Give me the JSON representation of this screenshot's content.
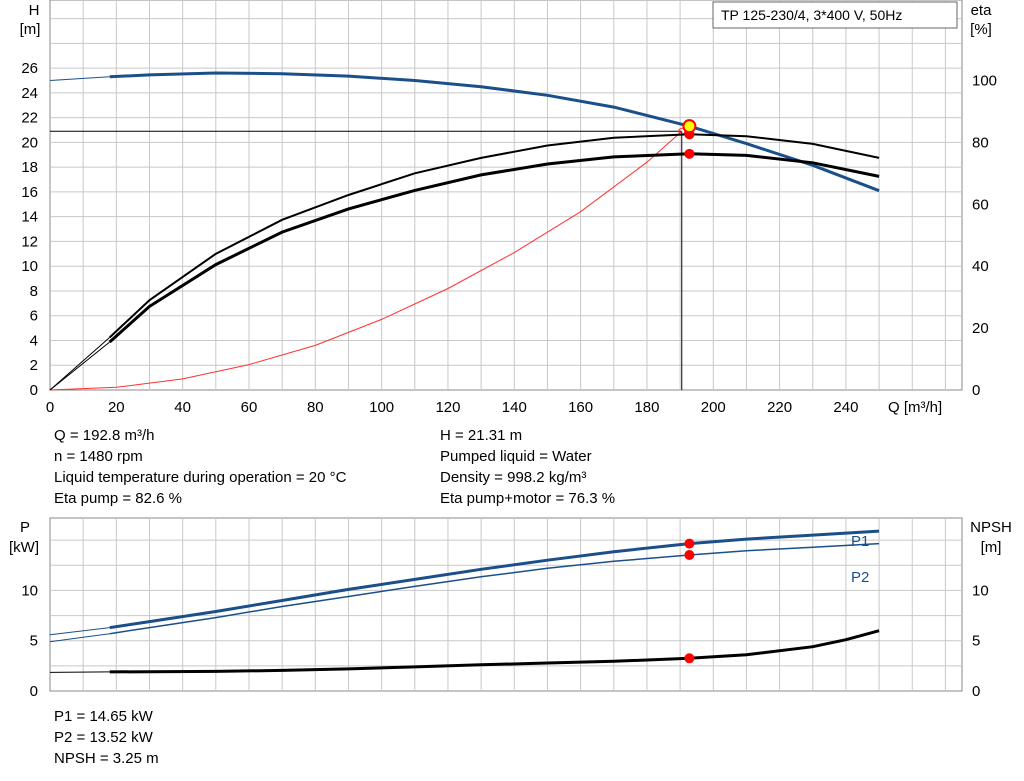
{
  "colors": {
    "curve_blue": "#1b4f8a",
    "curve_black": "#000000",
    "system_curve": "#ff3030",
    "grid": "#c8c8c8",
    "marker_red": "#ff0000",
    "duty_marker_fill": "#ffff00"
  },
  "title_box": "TP 125-230/4, 3*400 V, 50Hz",
  "info_top": {
    "left": [
      "Q = 192.8 m³/h",
      "n = 1480 rpm",
      "Liquid temperature during operation = 20 °C",
      "Eta pump = 82.6 %"
    ],
    "right": [
      "H = 21.31 m",
      "Pumped liquid = Water",
      "Density = 998.2 kg/m³",
      "Eta pump+motor = 76.3 %"
    ]
  },
  "info_bottom": [
    "P1 = 14.65 kW",
    "P2 = 13.52 kW",
    "NPSH = 3.25 m"
  ],
  "chart_data": [
    {
      "type": "line",
      "name": "head-efficiency",
      "x_label": "Q [m³/h]",
      "y_left_label": [
        "H",
        "[m]"
      ],
      "y_right_label": [
        "eta",
        "[%]"
      ],
      "x_ticks": [
        "0",
        "20",
        "40",
        "60",
        "80",
        "100",
        "120",
        "140",
        "160",
        "180",
        "200",
        "220",
        "240"
      ],
      "y_left_ticks": [
        "0",
        "2",
        "4",
        "6",
        "8",
        "10",
        "12",
        "14",
        "16",
        "18",
        "20",
        "22",
        "24",
        "26"
      ],
      "y_right_ticks": [
        "0",
        "20",
        "40",
        "60",
        "80",
        "100"
      ],
      "xlim": [
        0,
        275
      ],
      "ylim_left": [
        0,
        31.5
      ],
      "ylim_right": [
        0,
        126
      ],
      "grid": true,
      "series": [
        {
          "key": "head",
          "axis": "left",
          "x": [
            0,
            18,
            30,
            50,
            70,
            90,
            110,
            130,
            150,
            170,
            192.8,
            210,
            230,
            250
          ],
          "y": [
            25.0,
            25.3,
            25.45,
            25.6,
            25.55,
            25.35,
            25.0,
            24.5,
            23.8,
            22.85,
            21.31,
            19.9,
            18.15,
            16.1
          ]
        },
        {
          "key": "eta_pump",
          "axis": "right",
          "x": [
            0,
            18,
            30,
            50,
            70,
            90,
            110,
            130,
            150,
            170,
            192.8,
            210,
            230,
            250
          ],
          "y": [
            0,
            17,
            29,
            44,
            55,
            63,
            70,
            75,
            79,
            81.5,
            82.6,
            82.0,
            79.5,
            75
          ]
        },
        {
          "key": "eta_pump_motor",
          "axis": "right",
          "x": [
            0,
            18,
            30,
            50,
            70,
            90,
            110,
            130,
            150,
            170,
            192.8,
            210,
            230,
            250
          ],
          "y": [
            0,
            15.5,
            27,
            40.5,
            51,
            58.5,
            64.5,
            69.5,
            73,
            75.3,
            76.3,
            75.8,
            73.4,
            69
          ]
        },
        {
          "key": "system",
          "axis": "left",
          "x": [
            0,
            20,
            40,
            60,
            80,
            100,
            120,
            140,
            160,
            180,
            190.5
          ],
          "y": [
            0,
            0.22,
            0.9,
            2.05,
            3.6,
            5.7,
            8.2,
            11.1,
            14.4,
            18.4,
            20.9
          ]
        }
      ],
      "duty_point": {
        "q": 192.8,
        "h": 21.31,
        "eta_pump": 82.6,
        "eta_pump_motor": 76.3,
        "h_line": 20.9,
        "q_line": 190.5,
        "extra_marker_eta": 84.5
      }
    },
    {
      "type": "line",
      "name": "power-npsh",
      "y_left_label": [
        "P",
        "[kW]"
      ],
      "y_right_label": [
        "NPSH",
        "[m]"
      ],
      "y_left_ticks": [
        "0",
        "5",
        "10"
      ],
      "y_right_ticks": [
        "0",
        "5",
        "10"
      ],
      "xlim": [
        0,
        275
      ],
      "ylim": [
        0,
        17.2
      ],
      "grid": true,
      "series": [
        {
          "key": "P1",
          "name": "P1",
          "x": [
            0,
            18,
            30,
            50,
            70,
            90,
            110,
            130,
            150,
            170,
            192.8,
            210,
            230,
            250
          ],
          "y": [
            5.6,
            6.3,
            6.9,
            7.9,
            9.0,
            10.1,
            11.1,
            12.1,
            13.0,
            13.85,
            14.65,
            15.1,
            15.5,
            15.9
          ]
        },
        {
          "key": "P2",
          "name": "P2",
          "x": [
            0,
            18,
            30,
            50,
            70,
            90,
            110,
            130,
            150,
            170,
            192.8,
            210,
            230,
            250
          ],
          "y": [
            4.9,
            5.7,
            6.3,
            7.3,
            8.4,
            9.4,
            10.4,
            11.35,
            12.2,
            12.9,
            13.52,
            13.95,
            14.3,
            14.65
          ]
        },
        {
          "key": "NPSH",
          "x": [
            0,
            18,
            30,
            50,
            70,
            90,
            110,
            130,
            150,
            170,
            192.8,
            210,
            230,
            240,
            250
          ],
          "y": [
            1.85,
            1.9,
            1.92,
            1.95,
            2.05,
            2.2,
            2.4,
            2.6,
            2.78,
            2.95,
            3.25,
            3.6,
            4.4,
            5.1,
            6.0
          ]
        }
      ],
      "duty_point": {
        "q": 192.8,
        "P1": 14.65,
        "P2": 13.52,
        "NPSH": 3.25
      }
    }
  ]
}
